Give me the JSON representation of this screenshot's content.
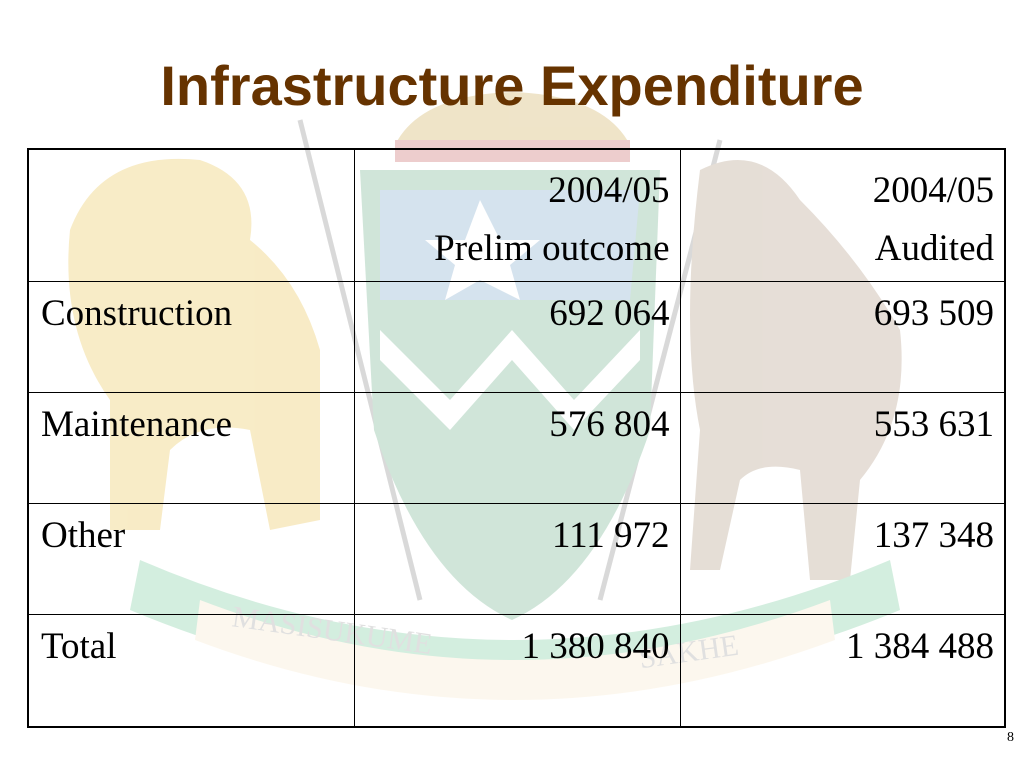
{
  "slide": {
    "title": "Infrastructure Expenditure",
    "page_number": "8",
    "watermark_motto": "MASISUKUME SAKHE"
  },
  "table": {
    "columns": [
      {
        "line1": "",
        "line2": ""
      },
      {
        "line1": "2004/05",
        "line2": "Prelim outcome"
      },
      {
        "line1": "2004/05",
        "line2": "Audited"
      }
    ],
    "rows": [
      {
        "label": "Construction",
        "prelim": "692 064",
        "audited": "693 509"
      },
      {
        "label": "Maintenance",
        "prelim": "576 804",
        "audited": "553 631"
      },
      {
        "label": "Other",
        "prelim": "111 972",
        "audited": "137 348"
      },
      {
        "label": "Total",
        "prelim": "1 380 840",
        "audited": "1 384 488"
      }
    ]
  },
  "colors": {
    "title": "#663300",
    "text": "#000000",
    "background": "#ffffff"
  }
}
